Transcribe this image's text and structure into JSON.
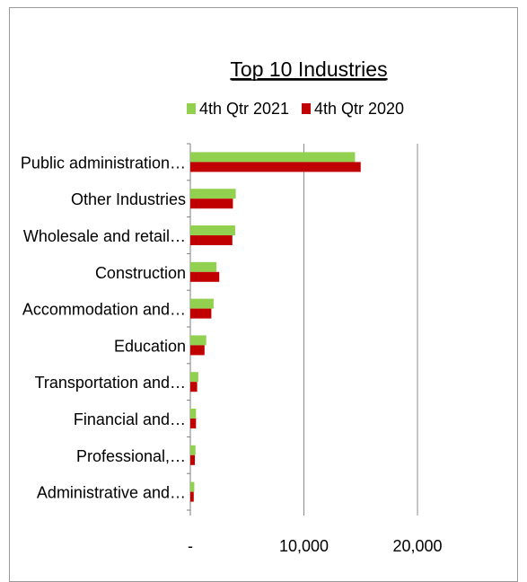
{
  "chart_data": {
    "type": "bar",
    "orientation": "horizontal",
    "title": "Top 10 Industries",
    "categories": [
      "Public administration…",
      "Other Industries",
      "Wholesale and retail…",
      "Construction",
      "Accommodation and…",
      "Education",
      "Transportation and…",
      "Financial and…",
      "Professional,…",
      "Administrative and…"
    ],
    "series": [
      {
        "name": "4th Qtr 2021",
        "color": "#92d050",
        "values": [
          14500,
          4000,
          3950,
          2300,
          2050,
          1400,
          700,
          500,
          450,
          350
        ]
      },
      {
        "name": "4th Qtr 2020",
        "color": "#c00000",
        "values": [
          15000,
          3750,
          3700,
          2550,
          1850,
          1250,
          600,
          500,
          400,
          300
        ]
      }
    ],
    "xlim": [
      0,
      20000
    ],
    "xticks": [
      0,
      10000,
      20000
    ],
    "xtick_labels": [
      "-",
      "10,000",
      "20,000"
    ],
    "grid": true,
    "legend_position": "top"
  }
}
